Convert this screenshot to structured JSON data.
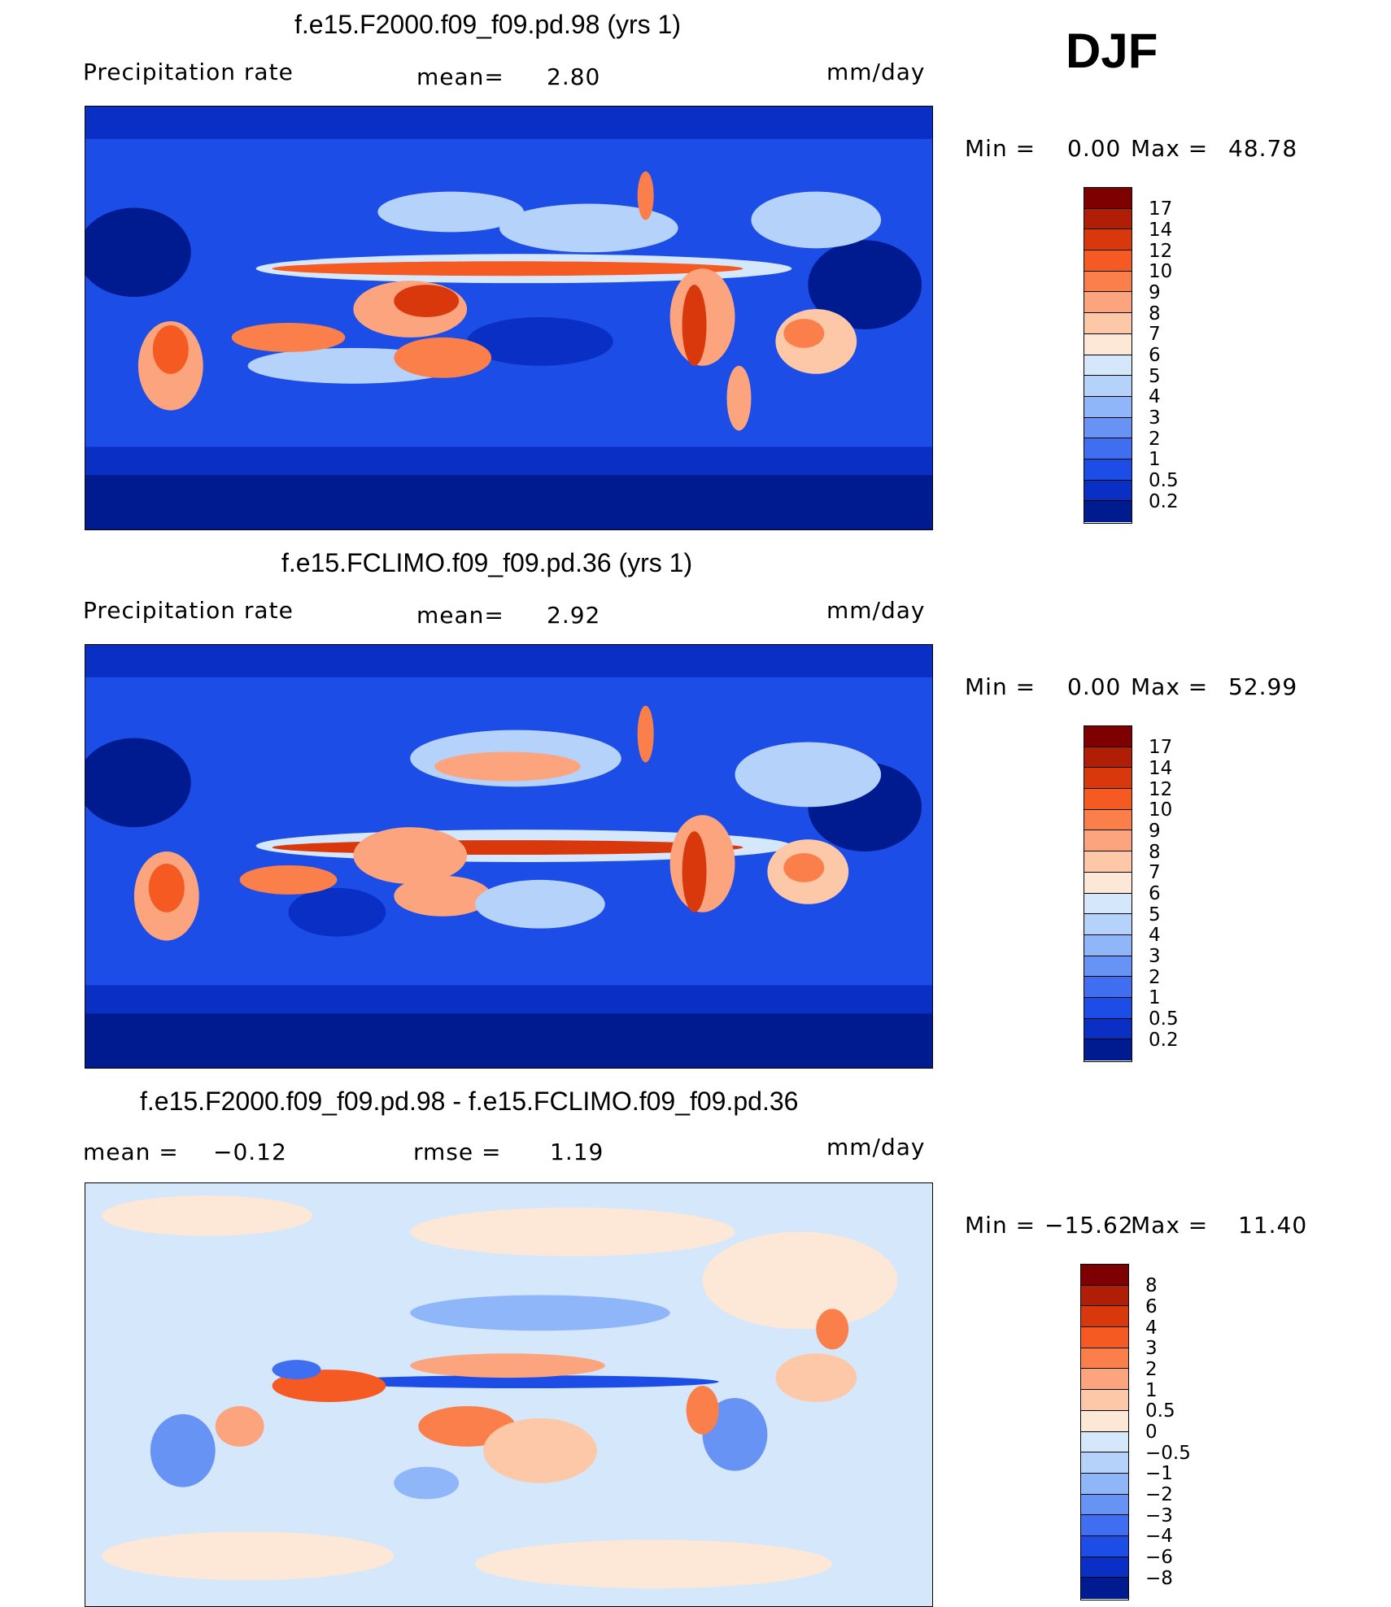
{
  "season": "DJF",
  "panels": [
    {
      "title": "f.e15.F2000.f09_f09.pd.98 (yrs 1)",
      "left_label": "Precipitation  rate",
      "mid_label": "mean=",
      "mid_value": "2.80",
      "units": "mm/day",
      "min_label": "Min  =",
      "min_value": "0.00",
      "max_label": "Max  =",
      "max_value": "48.78"
    },
    {
      "title": "f.e15.FCLIMO.f09_f09.pd.36 (yrs 1)",
      "left_label": "Precipitation  rate",
      "mid_label": "mean=",
      "mid_value": "2.92",
      "units": "mm/day",
      "min_label": "Min  =",
      "min_value": "0.00",
      "max_label": "Max  =",
      "max_value": "52.99"
    },
    {
      "title": "f.e15.F2000.f09_f09.pd.98 - f.e15.FCLIMO.f09_f09.pd.36",
      "left_label": "mean  =",
      "left_value": "−0.12",
      "mid_label": "rmse  =",
      "mid_value": "1.19",
      "units": "mm/day",
      "min_label": "Min  =",
      "min_value": "−15.62",
      "max_label": "Max  =",
      "max_value": "11.40"
    }
  ],
  "colorbars": {
    "precip": {
      "labels": [
        "17",
        "14",
        "12",
        "10",
        "9",
        "8",
        "7",
        "6",
        "5",
        "4",
        "3",
        "2",
        "1",
        "0.5",
        "0.2"
      ],
      "colors": [
        "#7f0000",
        "#b01f05",
        "#d8380c",
        "#f45a21",
        "#fb7f4a",
        "#fca47e",
        "#fdc8a8",
        "#fde7d6",
        "#d5e7fb",
        "#b5d2fb",
        "#8fb6f9",
        "#6693f4",
        "#3f6ef0",
        "#1c4de6",
        "#0a2fc4",
        "#001a8f"
      ]
    },
    "diff": {
      "labels": [
        "8",
        "6",
        "4",
        "3",
        "2",
        "1",
        "0.5",
        "0",
        "−0.5",
        "−1",
        "−2",
        "−3",
        "−4",
        "−6",
        "−8"
      ],
      "colors": [
        "#7f0000",
        "#b01f05",
        "#d8380c",
        "#f45a21",
        "#fb7f4a",
        "#fca47e",
        "#fdc8a8",
        "#fde7d6",
        "#d5e7fb",
        "#b5d2fb",
        "#8fb6f9",
        "#6693f4",
        "#3f6ef0",
        "#1c4de6",
        "#0a2fc4",
        "#001a8f"
      ]
    }
  }
}
